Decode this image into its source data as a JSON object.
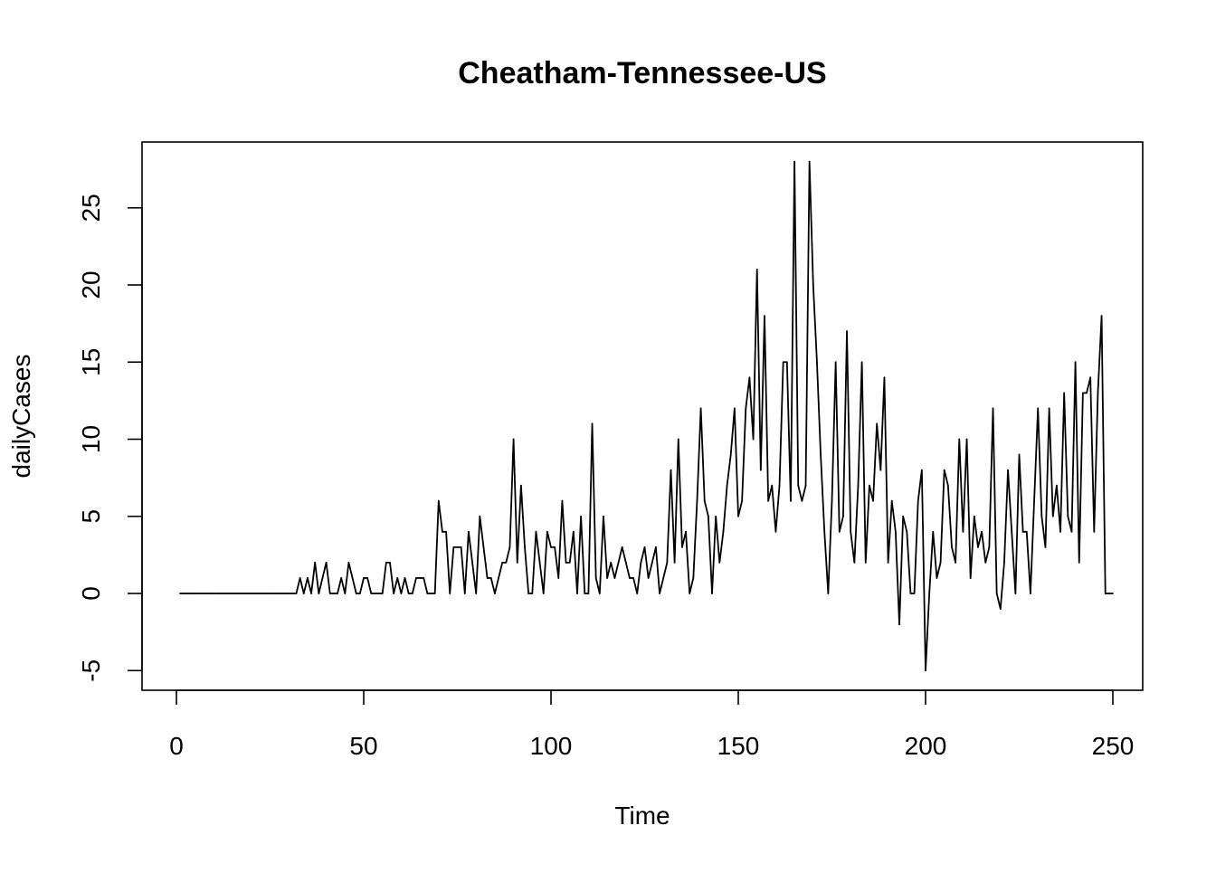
{
  "chart_data": {
    "type": "line",
    "title": "Cheatham-Tennessee-US",
    "xlabel": "Time",
    "ylabel": "dailyCases",
    "xlim": [
      0,
      250
    ],
    "ylim": [
      -5,
      28
    ],
    "x_ticks": [
      0,
      50,
      100,
      150,
      200,
      250
    ],
    "y_ticks": [
      -5,
      0,
      5,
      10,
      15,
      20,
      25
    ],
    "grid": false,
    "legend": "none",
    "line_color": "#000000",
    "x_start": 1,
    "values": [
      0,
      0,
      0,
      0,
      0,
      0,
      0,
      0,
      0,
      0,
      0,
      0,
      0,
      0,
      0,
      0,
      0,
      0,
      0,
      0,
      0,
      0,
      0,
      0,
      0,
      0,
      0,
      0,
      0,
      0,
      0,
      0,
      1,
      0,
      1,
      0,
      2,
      0,
      1,
      2,
      0,
      0,
      0,
      1,
      0,
      2,
      1,
      0,
      0,
      1,
      1,
      0,
      0,
      0,
      0,
      2,
      2,
      0,
      1,
      0,
      1,
      0,
      0,
      1,
      1,
      1,
      0,
      0,
      0,
      6,
      4,
      4,
      0,
      3,
      3,
      3,
      0,
      4,
      2,
      0,
      5,
      3,
      1,
      1,
      0,
      1,
      2,
      2,
      3,
      10,
      2,
      7,
      3,
      0,
      0,
      4,
      2,
      0,
      4,
      3,
      3,
      1,
      6,
      2,
      2,
      4,
      0,
      5,
      0,
      0,
      11,
      1,
      0,
      5,
      1,
      2,
      1,
      2,
      3,
      2,
      1,
      1,
      0,
      2,
      3,
      1,
      2,
      3,
      0,
      1,
      2,
      8,
      2,
      10,
      3,
      4,
      0,
      1,
      6,
      12,
      6,
      5,
      0,
      5,
      2,
      4,
      7,
      9,
      12,
      5,
      6,
      12,
      14,
      10,
      21,
      8,
      18,
      6,
      7,
      4,
      7,
      15,
      15,
      6,
      28,
      7,
      6,
      7,
      28,
      20,
      15,
      9,
      4,
      0,
      6,
      15,
      4,
      5,
      17,
      4,
      2,
      7,
      15,
      2,
      7,
      6,
      11,
      8,
      14,
      2,
      6,
      4,
      -2,
      5,
      4,
      0,
      0,
      6,
      8,
      -5,
      0,
      4,
      1,
      2,
      8,
      7,
      3,
      2,
      10,
      4,
      10,
      1,
      5,
      3,
      4,
      2,
      3,
      12,
      0,
      -1,
      2,
      8,
      4,
      0,
      9,
      4,
      4,
      0,
      6,
      12,
      5,
      3,
      12,
      5,
      7,
      4,
      13,
      5,
      4,
      15,
      2,
      13,
      13,
      14,
      4,
      13,
      18,
      0,
      0,
      0
    ]
  }
}
